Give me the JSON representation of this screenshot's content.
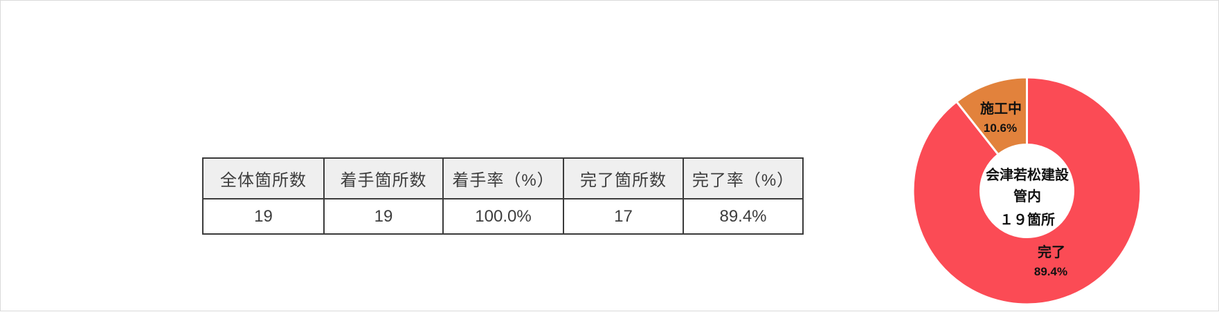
{
  "page": {
    "background": "#ffffff",
    "border_color": "#d9d9d9"
  },
  "table": {
    "header_bg": "#efefef",
    "border_color": "#3a3a3a",
    "headers": [
      "全体箇所数",
      "着手箇所数",
      "着手率（%）",
      "完了箇所数",
      "完了率（%）"
    ],
    "values": [
      "19",
      "19",
      "100.0%",
      "17",
      "89.4%"
    ]
  },
  "chart_data": {
    "type": "pie",
    "subtype": "donut",
    "legend": "none",
    "labels_position": "inside",
    "start_angle_deg": 0,
    "direction": "clockwise",
    "gap_color": "#ffffff",
    "center_label": {
      "line1": "会津若松建設",
      "line2": "管内",
      "line3": "１９箇所"
    },
    "slices": [
      {
        "name": "完了",
        "value_pct": 89.4,
        "pct_label": "89.4%",
        "color": "#fb4b55"
      },
      {
        "name": "施工中",
        "value_pct": 10.6,
        "pct_label": "10.6%",
        "color": "#e2823c"
      }
    ]
  }
}
